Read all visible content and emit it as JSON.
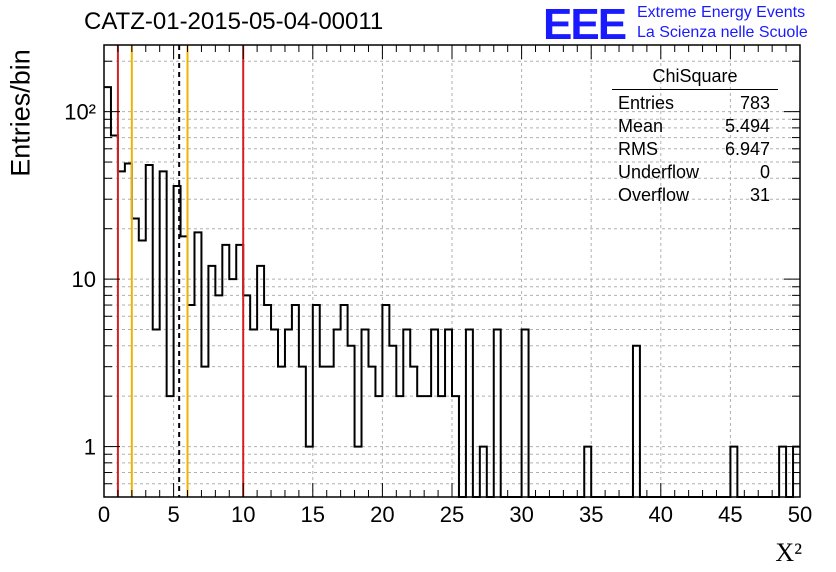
{
  "header": {
    "title": "CATZ-01-2015-05-04-00011",
    "logo": "EEE",
    "logo_line1": "Extreme Energy Events",
    "logo_line2": "La Scienza nelle Scuole"
  },
  "stats": {
    "title": "ChiSquare",
    "rows": [
      {
        "label": "Entries",
        "value": "783"
      },
      {
        "label": "Mean",
        "value": "5.494"
      },
      {
        "label": "RMS",
        "value": "6.947"
      },
      {
        "label": "Underflow",
        "value": "0"
      },
      {
        "label": "Overflow",
        "value": "31"
      }
    ]
  },
  "chart_data": {
    "type": "bar",
    "style": "step-histogram",
    "xlabel": "X²",
    "ylabel": "Entries/bin",
    "xlim": [
      0,
      50
    ],
    "ylim": [
      0.5,
      250
    ],
    "yscale": "log",
    "grid": true,
    "bin_width": 0.5,
    "x_ticks": [
      "0",
      "5",
      "10",
      "15",
      "20",
      "25",
      "30",
      "35",
      "40",
      "45",
      "50"
    ],
    "y_ticks": [
      {
        "value": 1,
        "label": "1"
      },
      {
        "value": 10,
        "label": "10"
      },
      {
        "value": 100,
        "label": "10²"
      }
    ],
    "values": [
      140,
      72,
      44,
      49,
      23,
      17,
      48,
      5,
      44,
      2,
      36,
      18,
      7,
      19,
      3,
      12,
      8,
      16,
      10,
      16,
      8,
      5,
      12,
      7,
      5,
      3,
      5,
      7,
      3,
      1,
      7,
      3,
      3,
      5,
      7,
      4,
      1,
      5,
      3,
      2,
      7,
      4,
      2,
      5,
      3,
      2,
      2,
      5,
      2,
      5,
      2,
      0.5,
      5,
      0.5,
      1,
      0.5,
      5,
      0.5,
      0.5,
      0.5,
      5,
      0.5,
      0.5,
      0.5,
      0.5,
      0.5,
      0.5,
      0.5,
      0.5,
      1,
      0.5,
      0.5,
      0.5,
      0.5,
      0.5,
      0.5,
      4,
      0.5,
      0.5,
      0.5,
      0.5,
      0.5,
      0.5,
      0.5,
      0.5,
      0.5,
      0.5,
      0.5,
      0.5,
      0.5,
      1,
      0.5,
      0.5,
      0.5,
      0.5,
      0.5,
      0.5,
      1,
      0.5,
      1
    ],
    "vertical_lines": [
      {
        "x": 1,
        "color": "#d62020",
        "style": "solid"
      },
      {
        "x": 2,
        "color": "#f0b400",
        "style": "solid"
      },
      {
        "x": 5.4,
        "color": "#000000",
        "style": "dashed"
      },
      {
        "x": 6,
        "color": "#f0b400",
        "style": "solid"
      },
      {
        "x": 10,
        "color": "#d62020",
        "style": "solid"
      }
    ]
  }
}
